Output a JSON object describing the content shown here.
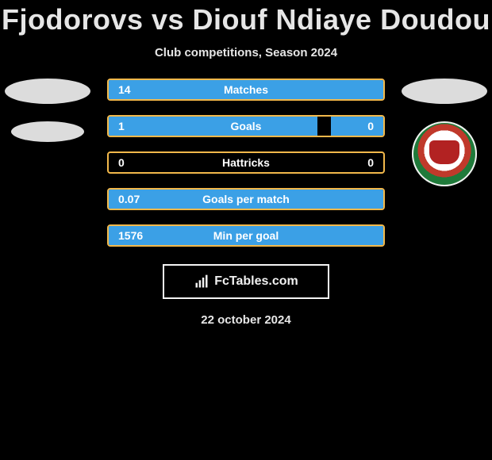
{
  "title": "Fjodorovs vs Diouf Ndiaye Doudou",
  "subtitle": "Club competitions, Season 2024",
  "date": "22 october 2024",
  "brand": "FcTables.com",
  "colors": {
    "background": "#000000",
    "text": "#e6e6e6",
    "bar_border": "#f2b84b",
    "bar_fill": "#3ba0e6"
  },
  "stats": [
    {
      "label": "Matches",
      "left_val": "14",
      "right_val": "",
      "left_pct": 100,
      "right_pct": 0
    },
    {
      "label": "Goals",
      "left_val": "1",
      "right_val": "0",
      "left_pct": 76,
      "right_pct": 19
    },
    {
      "label": "Hattricks",
      "left_val": "0",
      "right_val": "0",
      "left_pct": 0,
      "right_pct": 0
    },
    {
      "label": "Goals per match",
      "left_val": "0.07",
      "right_val": "",
      "left_pct": 100,
      "right_pct": 0
    },
    {
      "label": "Min per goal",
      "left_val": "1576",
      "right_val": "",
      "left_pct": 100,
      "right_pct": 0
    }
  ],
  "right_club": "FK Liepaja"
}
